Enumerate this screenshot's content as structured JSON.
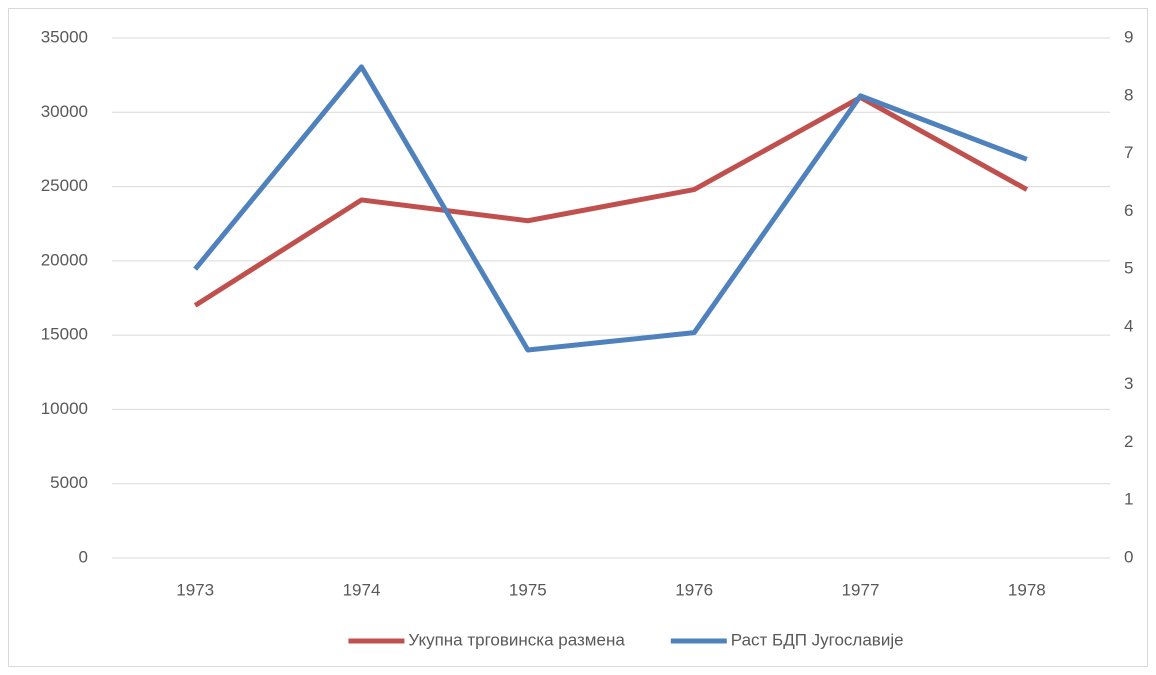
{
  "chart_data": {
    "type": "line",
    "categories": [
      "1973",
      "1974",
      "1975",
      "1976",
      "1977",
      "1978"
    ],
    "series": [
      {
        "name": "Укупна трговинска размена",
        "color": "#c0504d",
        "values": [
          17000,
          24100,
          22700,
          24800,
          31000,
          24800
        ]
      },
      {
        "name": "Раст БДП Југославије",
        "color": "#4f81bd",
        "axis": "y2",
        "values": [
          5.0,
          8.5,
          3.6,
          3.9,
          8.0,
          6.9
        ]
      }
    ],
    "ylim": [
      0,
      35000
    ],
    "yticks": [
      0,
      5000,
      10000,
      15000,
      20000,
      25000,
      30000,
      35000
    ],
    "y2lim": [
      0,
      9
    ],
    "y2ticks": [
      0,
      1,
      2,
      3,
      4,
      5,
      6,
      7,
      8,
      9
    ],
    "grid": true,
    "legend": "bottom"
  }
}
